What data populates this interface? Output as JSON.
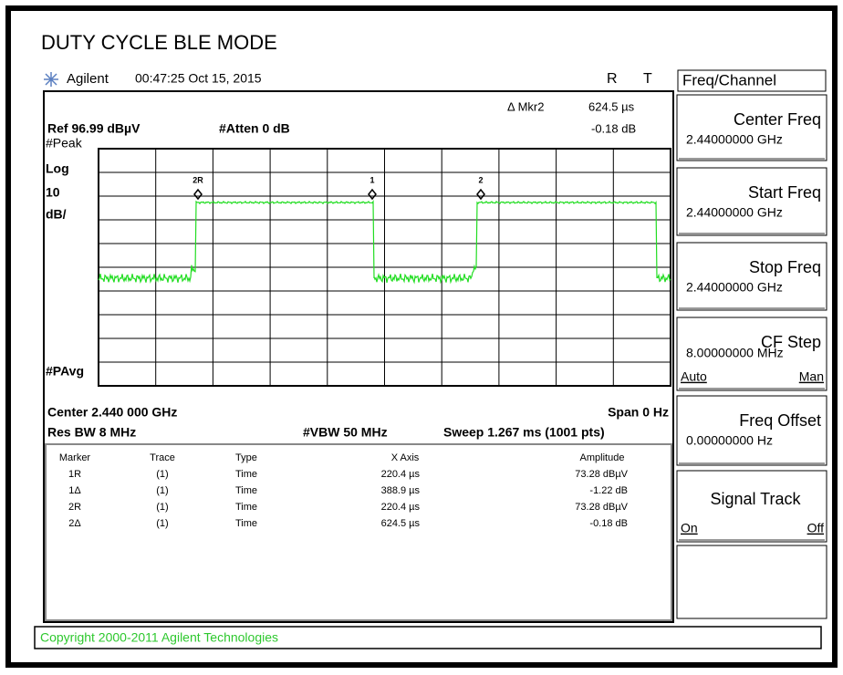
{
  "title": "DUTY CYCLE BLE MODE",
  "header": {
    "brand": "Agilent",
    "datetime": "00:47:25  Oct 15, 2015",
    "indicators": [
      "R",
      "T"
    ]
  },
  "marker_readout": {
    "label": "Δ Mkr2",
    "x": "624.5 µs",
    "amplitude": "-0.18 dB"
  },
  "settings": {
    "ref": "Ref 96.99 dBµV",
    "atten": "#Atten 0 dB",
    "detector": "#Peak",
    "scale": [
      "Log",
      "10",
      "dB/"
    ],
    "avg": "#PAvg",
    "center": "Center 2.440 000 GHz",
    "span": "Span 0 Hz",
    "rbw": "Res BW 8 MHz",
    "vbw": "#VBW 50 MHz",
    "sweep": "Sweep 1.267 ms (1001 pts)"
  },
  "trace_markers": [
    "2R",
    "1",
    "2"
  ],
  "marker_table": {
    "columns": [
      "Marker",
      "Trace",
      "Type",
      "X Axis",
      "Amplitude"
    ],
    "rows": [
      [
        "1R",
        "(1)",
        "Time",
        "220.4 µs",
        "73.28 dBµV"
      ],
      [
        "1Δ",
        "(1)",
        "Time",
        "388.9 µs",
        "-1.22 dB"
      ],
      [
        "2R",
        "(1)",
        "Time",
        "220.4 µs",
        "73.28 dBµV"
      ],
      [
        "2Δ",
        "(1)",
        "Time",
        "624.5 µs",
        "-0.18 dB"
      ]
    ]
  },
  "menu": {
    "title": "Freq/Channel",
    "keys": [
      {
        "label": "Center Freq",
        "value": "2.44000000 GHz"
      },
      {
        "label": "Start Freq",
        "value": "2.44000000 GHz"
      },
      {
        "label": "Stop Freq",
        "value": "2.44000000 GHz"
      },
      {
        "label": "CF Step",
        "value": "8.00000000 MHz",
        "options": [
          "Auto",
          "Man"
        ]
      },
      {
        "label": "Freq Offset",
        "value": "0.00000000 Hz"
      },
      {
        "label": "Signal Track",
        "options": [
          "On",
          "Off"
        ]
      }
    ]
  },
  "copyright": "Copyright 2000-2011 Agilent Technologies"
}
